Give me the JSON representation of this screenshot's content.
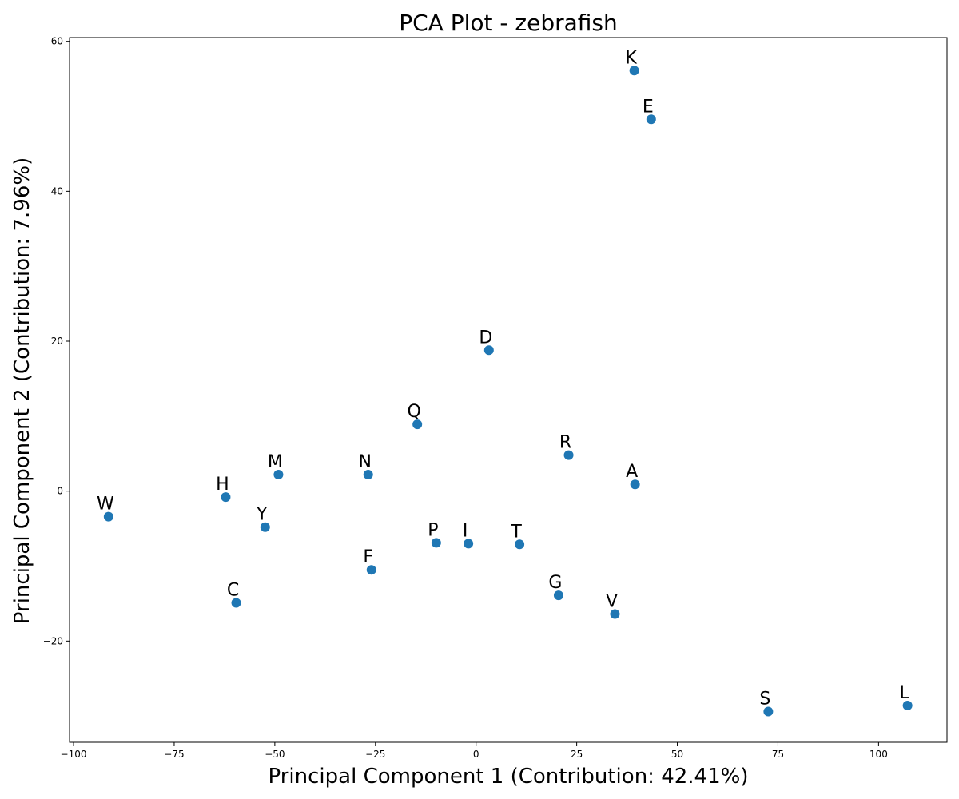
{
  "chart_data": {
    "type": "scatter",
    "title": "PCA Plot - zebrafish",
    "xlabel": "Principal Component 1 (Contribution: 42.41%)",
    "ylabel": "Principal Component 2 (Contribution: 7.96%)",
    "xlim": [
      -101,
      117
    ],
    "ylim": [
      -33.5,
      60.5
    ],
    "xticks": [
      -100,
      -75,
      -50,
      -25,
      0,
      25,
      50,
      75,
      100
    ],
    "yticks": [
      -20,
      0,
      20,
      40,
      60
    ],
    "grid": false,
    "marker_color": "#1f77b4",
    "points": [
      {
        "label": "K",
        "x": 39.3,
        "y": 56.1
      },
      {
        "label": "E",
        "x": 43.5,
        "y": 49.6
      },
      {
        "label": "D",
        "x": 3.2,
        "y": 18.8
      },
      {
        "label": "Q",
        "x": -14.6,
        "y": 8.9
      },
      {
        "label": "R",
        "x": 23.0,
        "y": 4.8
      },
      {
        "label": "A",
        "x": 39.5,
        "y": 0.9
      },
      {
        "label": "M",
        "x": -49.1,
        "y": 2.2
      },
      {
        "label": "N",
        "x": -26.8,
        "y": 2.2
      },
      {
        "label": "H",
        "x": -62.2,
        "y": -0.8
      },
      {
        "label": "W",
        "x": -91.3,
        "y": -3.4
      },
      {
        "label": "Y",
        "x": -52.4,
        "y": -4.8
      },
      {
        "label": "P",
        "x": -9.9,
        "y": -6.9
      },
      {
        "label": "I",
        "x": -1.9,
        "y": -7.0
      },
      {
        "label": "T",
        "x": 10.8,
        "y": -7.1
      },
      {
        "label": "F",
        "x": -26.0,
        "y": -10.5
      },
      {
        "label": "G",
        "x": 20.5,
        "y": -13.9
      },
      {
        "label": "C",
        "x": -59.6,
        "y": -14.9
      },
      {
        "label": "V",
        "x": 34.5,
        "y": -16.4
      },
      {
        "label": "S",
        "x": 72.6,
        "y": -29.4
      },
      {
        "label": "L",
        "x": 107.2,
        "y": -28.6
      }
    ]
  }
}
